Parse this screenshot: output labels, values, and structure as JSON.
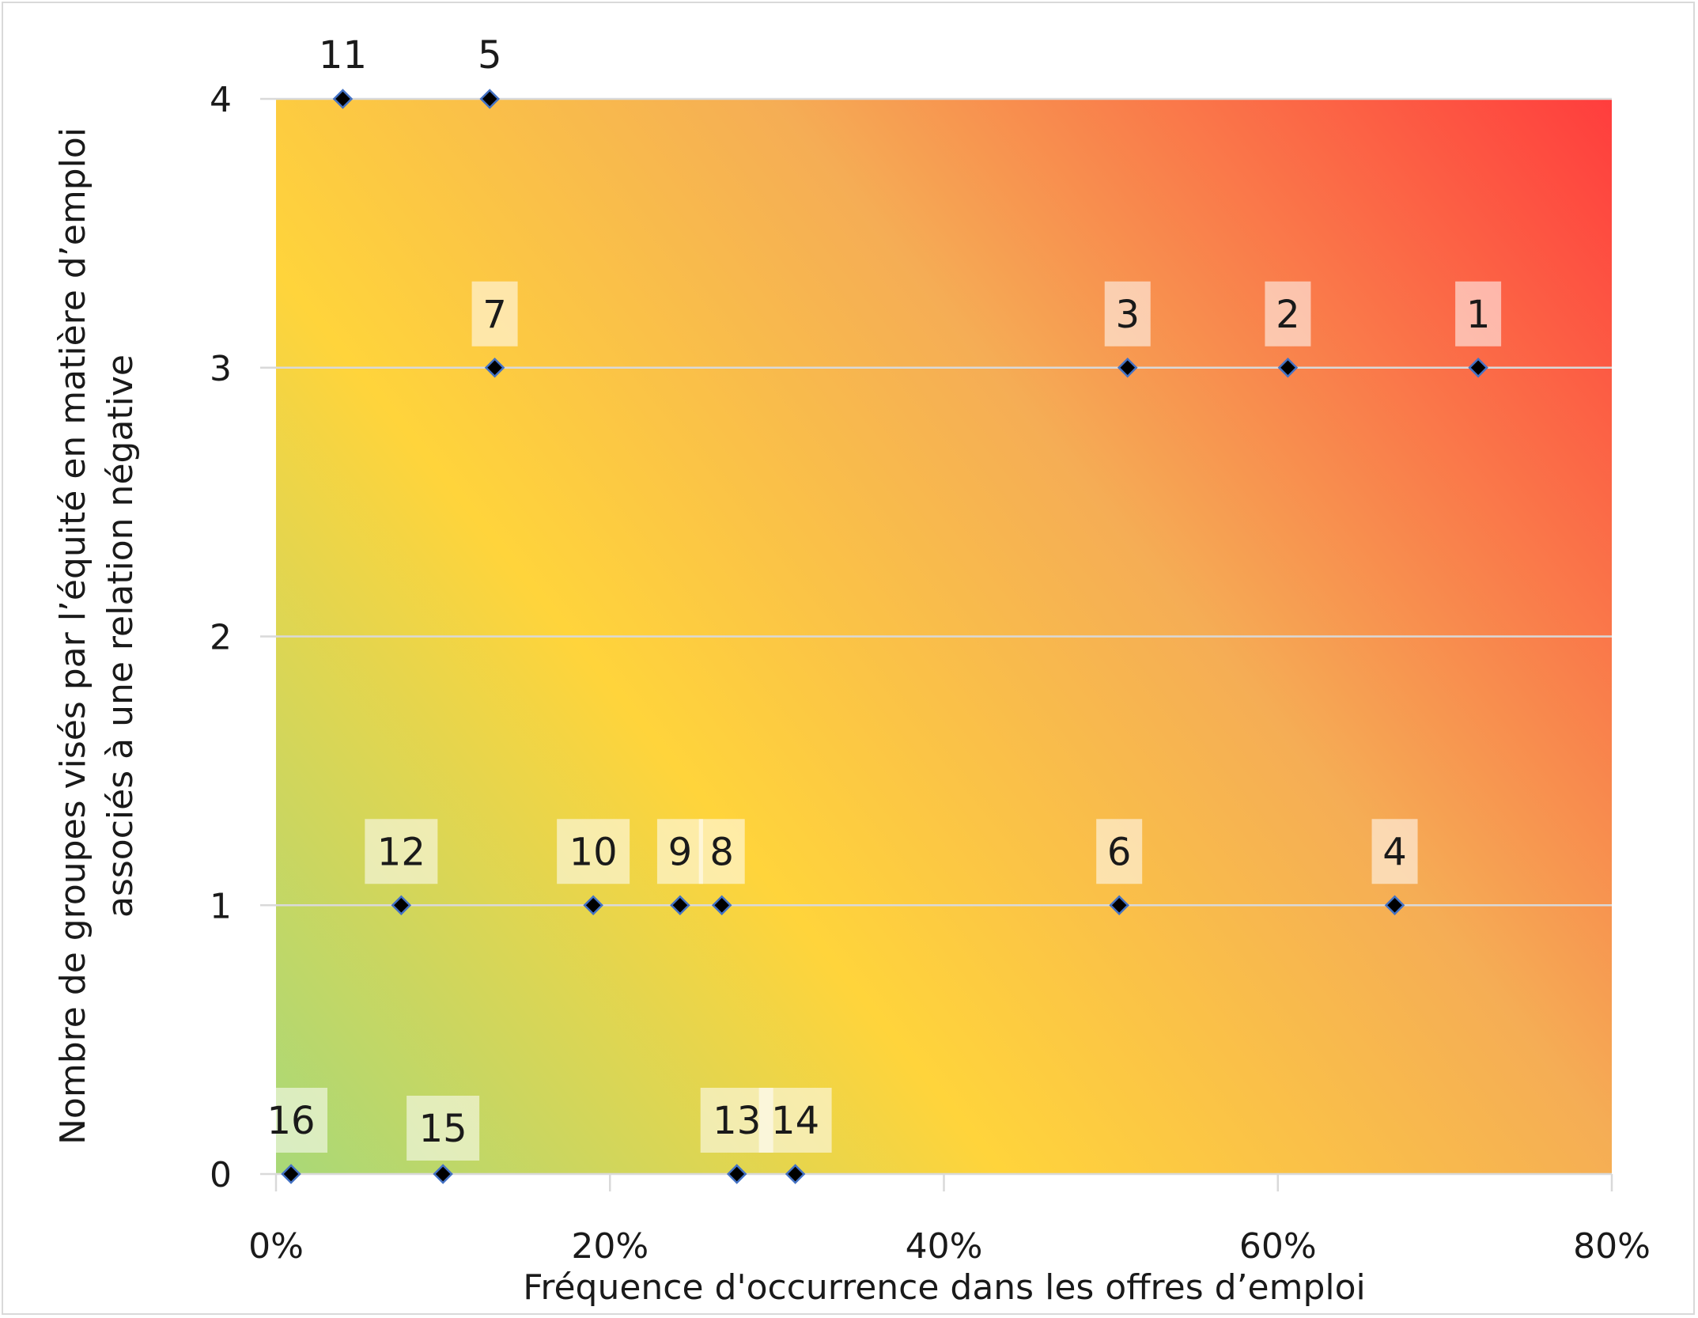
{
  "chart_data": {
    "type": "scatter",
    "xlabel": "Fréquence d'occurrence dans les offres d’emploi",
    "ylabel_lines": [
      "Nombre de groupes visés par l’équité en matière d’emploi",
      "associés à une relation négative"
    ],
    "xlim": [
      0,
      80
    ],
    "ylim": [
      0,
      4
    ],
    "x_ticks": [
      "0%",
      "20%",
      "40%",
      "60%",
      "80%"
    ],
    "x_tick_values": [
      0,
      20,
      40,
      60,
      80
    ],
    "y_ticks": [
      "0",
      "1",
      "2",
      "3",
      "4"
    ],
    "y_tick_values": [
      0,
      1,
      2,
      3,
      4
    ],
    "grid": "horizontal",
    "background": "diagonal gradient green (bottom-left) → yellow → orange → red (top-right)",
    "colors": {
      "green": "#a8d878",
      "yellow": "#ffd43b",
      "orange": "#f5ad55",
      "red": "#ff3d3d",
      "marker": "#000000",
      "marker_edge": "#4472c4",
      "grid": "#d9d9d9"
    },
    "points": [
      {
        "label": "1",
        "x": 72.0,
        "y": 3
      },
      {
        "label": "2",
        "x": 60.6,
        "y": 3
      },
      {
        "label": "3",
        "x": 51.0,
        "y": 3
      },
      {
        "label": "4",
        "x": 67.0,
        "y": 1
      },
      {
        "label": "5",
        "x": 12.8,
        "y": 4
      },
      {
        "label": "6",
        "x": 50.5,
        "y": 1
      },
      {
        "label": "7",
        "x": 13.1,
        "y": 3
      },
      {
        "label": "8",
        "x": 26.7,
        "y": 1
      },
      {
        "label": "9",
        "x": 24.2,
        "y": 1
      },
      {
        "label": "10",
        "x": 19.0,
        "y": 1
      },
      {
        "label": "11",
        "x": 4.0,
        "y": 4
      },
      {
        "label": "12",
        "x": 7.5,
        "y": 1
      },
      {
        "label": "13",
        "x": 27.6,
        "y": 0
      },
      {
        "label": "14",
        "x": 31.1,
        "y": 0
      },
      {
        "label": "15",
        "x": 10.0,
        "y": 0
      },
      {
        "label": "16",
        "x": 0.9,
        "y": 0
      }
    ]
  }
}
